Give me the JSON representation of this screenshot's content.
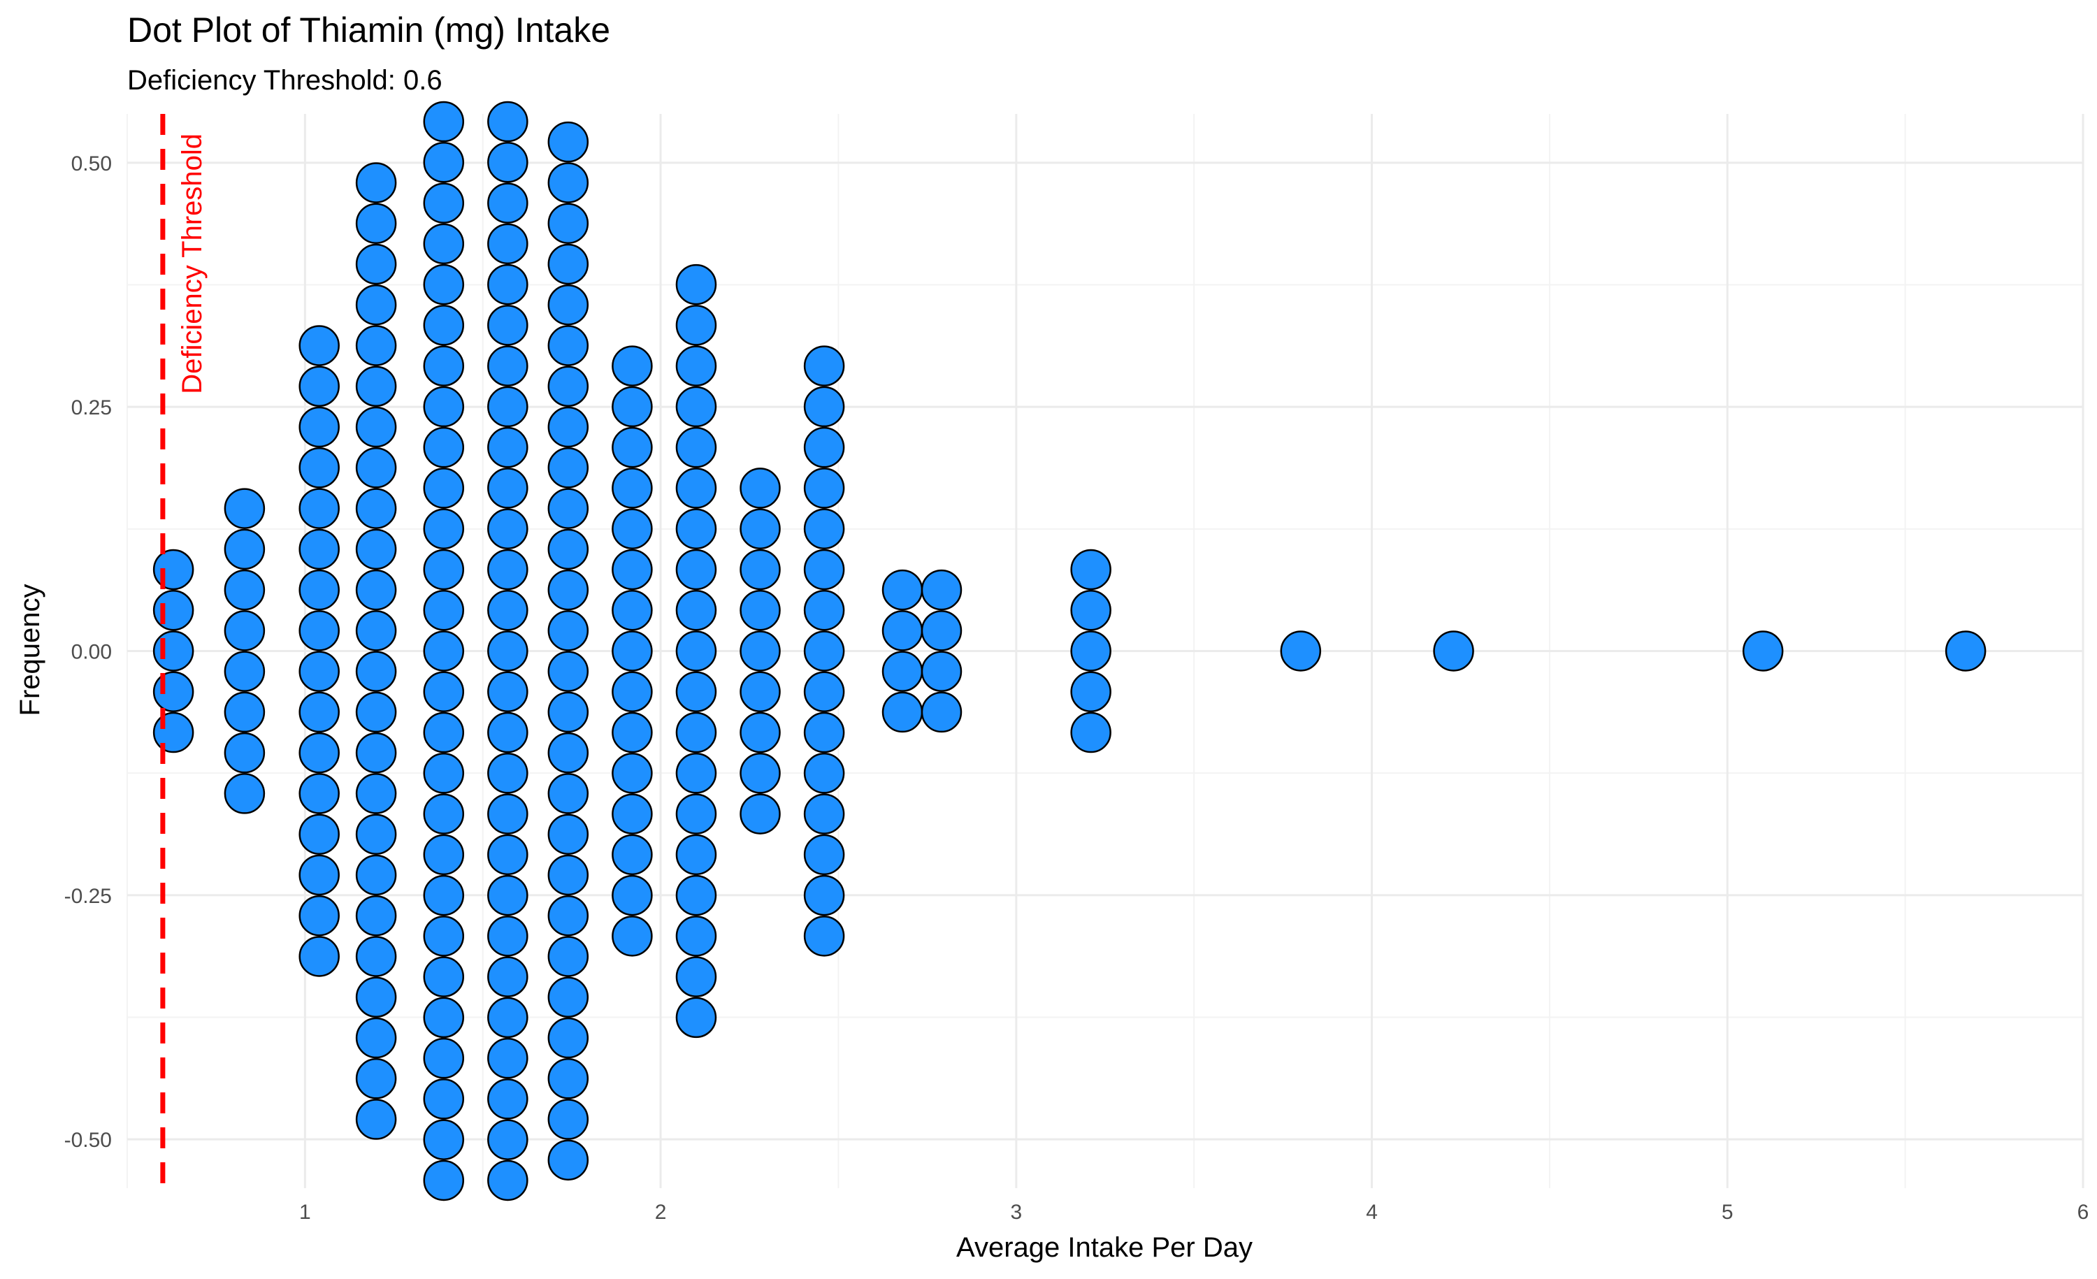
{
  "chart_data": {
    "type": "scatter",
    "subtype": "dotplot",
    "title": "Dot Plot of Thiamin (mg) Intake",
    "subtitle": "Deficiency Threshold: 0.6",
    "xlabel": "Average Intake Per Day",
    "ylabel": "Frequency",
    "xlim": [
      0.5,
      6.0
    ],
    "ylim": [
      -0.55,
      0.55
    ],
    "x_ticks": [
      "1",
      "2",
      "3",
      "4",
      "5",
      "6"
    ],
    "y_ticks": [
      "-0.50",
      "-0.25",
      "0.00",
      "0.25",
      "0.50"
    ],
    "grid": true,
    "legend": "none",
    "dot_fill": "#1E90FF",
    "dot_stroke": "#000000",
    "threshold": {
      "x": 0.6,
      "label": "Deficiency Threshold",
      "color": "#FF0000",
      "style": "dashed"
    },
    "bins": [
      {
        "x": 0.63,
        "count": 5
      },
      {
        "x": 0.83,
        "count": 8
      },
      {
        "x": 1.04,
        "count": 16
      },
      {
        "x": 1.2,
        "count": 24
      },
      {
        "x": 1.39,
        "count": 27
      },
      {
        "x": 1.57,
        "count": 27
      },
      {
        "x": 1.74,
        "count": 26
      },
      {
        "x": 1.92,
        "count": 15
      },
      {
        "x": 2.1,
        "count": 19
      },
      {
        "x": 2.28,
        "count": 9
      },
      {
        "x": 2.46,
        "count": 15
      },
      {
        "x": 2.68,
        "count": 4
      },
      {
        "x": 2.79,
        "count": 4
      },
      {
        "x": 3.21,
        "count": 5
      },
      {
        "x": 3.8,
        "count": 1
      },
      {
        "x": 4.23,
        "count": 1
      },
      {
        "x": 5.1,
        "count": 1
      },
      {
        "x": 5.67,
        "count": 1
      }
    ]
  }
}
